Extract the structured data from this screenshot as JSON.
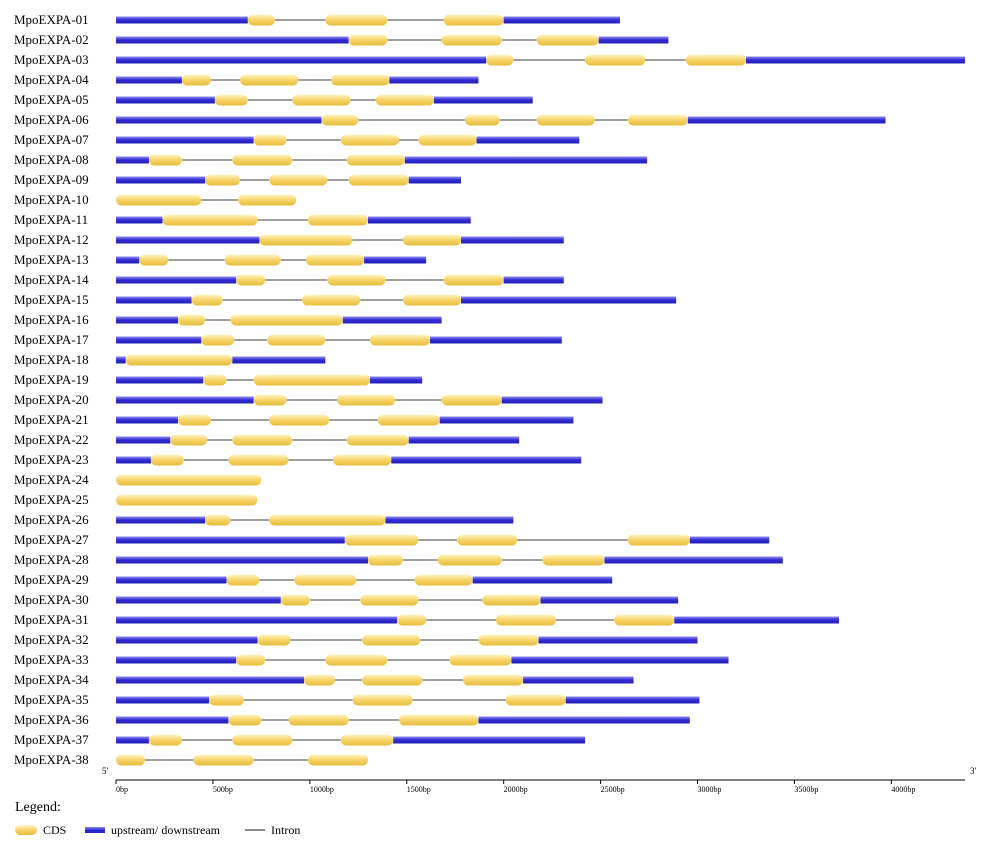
{
  "colors": {
    "cds": "#f5d36c",
    "utr": "#3a35d8",
    "intron": "#666666"
  },
  "axis": {
    "five_prime": "5'",
    "three_prime": "3'",
    "ticks": [
      "0bp",
      "500bp",
      "1000bp",
      "1500bp",
      "2000bp",
      "2500bp",
      "3000bp",
      "3500bp",
      "4000bp"
    ]
  },
  "legend": {
    "title": "Legend:",
    "cds_label": "CDS",
    "utr_label": "upstream/ downstream",
    "intron_label": "Intron"
  },
  "chart_data": {
    "type": "gene-structure",
    "units": "bp",
    "xlim": [
      0,
      4380
    ],
    "genes": [
      {
        "name": "MpoEXPA-01",
        "length": 2600,
        "cds": [
          [
            680,
            820
          ],
          [
            1080,
            1400
          ],
          [
            1690,
            2000
          ]
        ]
      },
      {
        "name": "MpoEXPA-02",
        "length": 2850,
        "cds": [
          [
            1200,
            1400
          ],
          [
            1680,
            1990
          ],
          [
            2170,
            2490
          ]
        ]
      },
      {
        "name": "MpoEXPA-03",
        "length": 4380,
        "cds": [
          [
            1910,
            2050
          ],
          [
            2420,
            2730
          ],
          [
            2940,
            3250
          ]
        ]
      },
      {
        "name": "MpoEXPA-04",
        "length": 1870,
        "cds": [
          [
            340,
            490
          ],
          [
            640,
            940
          ],
          [
            1110,
            1410
          ]
        ]
      },
      {
        "name": "MpoEXPA-05",
        "length": 2150,
        "cds": [
          [
            510,
            680
          ],
          [
            910,
            1210
          ],
          [
            1340,
            1640
          ]
        ]
      },
      {
        "name": "MpoEXPA-06",
        "length": 3970,
        "cds": [
          [
            1060,
            1250
          ],
          [
            1800,
            1980
          ],
          [
            2170,
            2470
          ],
          [
            2640,
            2950
          ]
        ]
      },
      {
        "name": "MpoEXPA-07",
        "length": 2390,
        "cds": [
          [
            710,
            880
          ],
          [
            1160,
            1460
          ],
          [
            1560,
            1860
          ]
        ]
      },
      {
        "name": "MpoEXPA-08",
        "length": 2740,
        "cds": [
          [
            170,
            340
          ],
          [
            600,
            910
          ],
          [
            1190,
            1490
          ]
        ]
      },
      {
        "name": "MpoEXPA-09",
        "length": 1780,
        "cds": [
          [
            460,
            640
          ],
          [
            790,
            1090
          ],
          [
            1200,
            1510
          ]
        ]
      },
      {
        "name": "MpoEXPA-10",
        "length": 930,
        "cds": [
          [
            0,
            440
          ],
          [
            630,
            930
          ]
        ]
      },
      {
        "name": "MpoEXPA-11",
        "length": 1830,
        "cds": [
          [
            240,
            730
          ],
          [
            990,
            1300
          ]
        ]
      },
      {
        "name": "MpoEXPA-12",
        "length": 2310,
        "cds": [
          [
            740,
            1220
          ],
          [
            1480,
            1780
          ]
        ]
      },
      {
        "name": "MpoEXPA-13",
        "length": 1600,
        "cds": [
          [
            120,
            270
          ],
          [
            560,
            850
          ],
          [
            980,
            1280
          ]
        ]
      },
      {
        "name": "MpoEXPA-14",
        "length": 2310,
        "cds": [
          [
            620,
            770
          ],
          [
            1090,
            1390
          ],
          [
            1690,
            2000
          ]
        ]
      },
      {
        "name": "MpoEXPA-15",
        "length": 2890,
        "cds": [
          [
            390,
            550
          ],
          [
            960,
            1260
          ],
          [
            1480,
            1780
          ]
        ]
      },
      {
        "name": "MpoEXPA-16",
        "length": 1680,
        "cds": [
          [
            320,
            460
          ],
          [
            590,
            1170
          ]
        ]
      },
      {
        "name": "MpoEXPA-17",
        "length": 2300,
        "cds": [
          [
            440,
            610
          ],
          [
            780,
            1080
          ],
          [
            1310,
            1620
          ]
        ]
      },
      {
        "name": "MpoEXPA-18",
        "length": 1080,
        "cds": [
          [
            50,
            600
          ]
        ]
      },
      {
        "name": "MpoEXPA-19",
        "length": 1580,
        "cds": [
          [
            450,
            570
          ],
          [
            710,
            1310
          ]
        ]
      },
      {
        "name": "MpoEXPA-20",
        "length": 2510,
        "cds": [
          [
            710,
            880
          ],
          [
            1140,
            1440
          ],
          [
            1680,
            1990
          ]
        ]
      },
      {
        "name": "MpoEXPA-21",
        "length": 2360,
        "cds": [
          [
            320,
            490
          ],
          [
            790,
            1100
          ],
          [
            1350,
            1670
          ]
        ]
      },
      {
        "name": "MpoEXPA-22",
        "length": 2080,
        "cds": [
          [
            280,
            470
          ],
          [
            600,
            910
          ],
          [
            1190,
            1510
          ]
        ]
      },
      {
        "name": "MpoEXPA-23",
        "length": 2400,
        "cds": [
          [
            180,
            350
          ],
          [
            580,
            890
          ],
          [
            1120,
            1420
          ]
        ]
      },
      {
        "name": "MpoEXPA-24",
        "length": 750,
        "cds": [
          [
            0,
            750
          ]
        ]
      },
      {
        "name": "MpoEXPA-25",
        "length": 730,
        "cds": [
          [
            0,
            730
          ]
        ]
      },
      {
        "name": "MpoEXPA-26",
        "length": 2050,
        "cds": [
          [
            460,
            590
          ],
          [
            790,
            1390
          ]
        ]
      },
      {
        "name": "MpoEXPA-27",
        "length": 3370,
        "cds": [
          [
            1180,
            1560
          ],
          [
            1760,
            2070
          ],
          [
            2640,
            2960
          ]
        ]
      },
      {
        "name": "MpoEXPA-28",
        "length": 3440,
        "cds": [
          [
            1300,
            1480
          ],
          [
            1660,
            1990
          ],
          [
            2200,
            2520
          ]
        ]
      },
      {
        "name": "MpoEXPA-29",
        "length": 2560,
        "cds": [
          [
            570,
            740
          ],
          [
            920,
            1240
          ],
          [
            1540,
            1840
          ]
        ]
      },
      {
        "name": "MpoEXPA-30",
        "length": 2900,
        "cds": [
          [
            850,
            1000
          ],
          [
            1260,
            1560
          ],
          [
            1890,
            2190
          ]
        ]
      },
      {
        "name": "MpoEXPA-31",
        "length": 3730,
        "cds": [
          [
            1450,
            1600
          ],
          [
            1960,
            2270
          ],
          [
            2570,
            2880
          ]
        ]
      },
      {
        "name": "MpoEXPA-32",
        "length": 3000,
        "cds": [
          [
            730,
            900
          ],
          [
            1270,
            1570
          ],
          [
            1870,
            2180
          ]
        ]
      },
      {
        "name": "MpoEXPA-33",
        "length": 3160,
        "cds": [
          [
            620,
            770
          ],
          [
            1080,
            1400
          ],
          [
            1720,
            2040
          ]
        ]
      },
      {
        "name": "MpoEXPA-34",
        "length": 2670,
        "cds": [
          [
            970,
            1130
          ],
          [
            1270,
            1580
          ],
          [
            1790,
            2100
          ]
        ]
      },
      {
        "name": "MpoEXPA-35",
        "length": 3010,
        "cds": [
          [
            480,
            660
          ],
          [
            1220,
            1530
          ],
          [
            2010,
            2320
          ]
        ]
      },
      {
        "name": "MpoEXPA-36",
        "length": 2960,
        "cds": [
          [
            580,
            750
          ],
          [
            890,
            1200
          ],
          [
            1460,
            1870
          ]
        ]
      },
      {
        "name": "MpoEXPA-37",
        "length": 2420,
        "cds": [
          [
            170,
            340
          ],
          [
            600,
            910
          ],
          [
            1160,
            1430
          ]
        ]
      },
      {
        "name": "MpoEXPA-38",
        "length": 1300,
        "cds": [
          [
            0,
            150
          ],
          [
            400,
            710
          ],
          [
            990,
            1300
          ]
        ]
      }
    ]
  }
}
